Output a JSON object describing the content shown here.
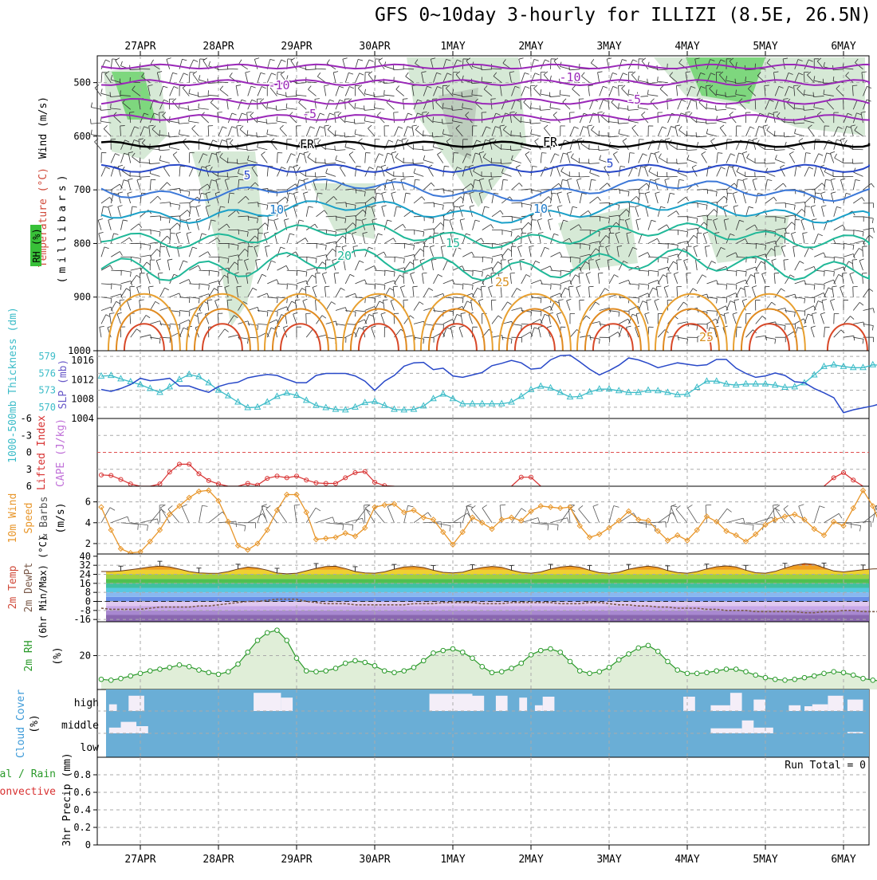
{
  "title": "GFS 0~10day 3-hourly for ILLIZI (8.5E, 26.5N)",
  "dates": [
    "27APR",
    "28APR",
    "29APR",
    "30APR",
    "1MAY",
    "2MAY",
    "3MAY",
    "4MAY",
    "5MAY",
    "6MAY"
  ],
  "panels": {
    "upper": {
      "labels": {
        "wind": "Wind (m/s)",
        "temperature": "Temperature (°C)",
        "millibars": "(millibars)",
        "rh": "RH (%)"
      },
      "yticks": [
        500,
        600,
        700,
        800,
        900,
        1000
      ],
      "contour_labels": [
        "-10",
        "-10",
        "-5",
        "-5",
        "FR",
        "FR",
        "5",
        "5",
        "10",
        "10",
        "15",
        "20",
        "25",
        "25"
      ]
    },
    "thickness": {
      "label_thickness": "1000-500mb Thickness (dm)",
      "label_slp": "SLP (mb)",
      "thickness_ticks": [
        "579",
        "576",
        "573",
        "570"
      ],
      "slp_ticks": [
        "1016",
        "1012",
        "1008",
        "1004"
      ]
    },
    "lifted": {
      "label_li": "Lifted Index",
      "label_cape": "CAPE (J/kg)",
      "yticks": [
        "-6",
        "-3",
        "0",
        "3",
        "6"
      ]
    },
    "wind10": {
      "label_main": "10m Wind",
      "label_speed": "Speed",
      "label_barbs": "& Barbs",
      "label_units": "(m/s)",
      "yticks": [
        "6",
        "4",
        "2"
      ]
    },
    "temp": {
      "label_temp": "2m Temp",
      "label_dew": "2m DewPt",
      "label_minmax": "(6hr Min/Max) (°C)",
      "yticks": [
        "40",
        "32",
        "24",
        "16",
        "8",
        "0",
        "-8",
        "-16"
      ]
    },
    "rh2m": {
      "label": "2m RH",
      "label_units": "(%)",
      "yticks": [
        "20"
      ]
    },
    "cloud": {
      "label": "Cloud Cover",
      "label_units": "(%)",
      "levels": [
        "high",
        "middle",
        "low"
      ]
    },
    "precip": {
      "label_total": "Total / Rain",
      "label_conv": "Convective",
      "label_main": "3hr Precip (mm)",
      "run_total": "Run Total = 0",
      "yticks": [
        "0.8",
        "0.6",
        "0.4",
        "0.2",
        "0"
      ]
    }
  },
  "colors": {
    "thickness": "#3cbcc8",
    "slp": "#2848c8",
    "lifted_index": "#d83030",
    "wind_speed": "#e8962a",
    "rh2m": "#2a9a2a",
    "dewpoint": "#7a5a4a"
  },
  "chart_data": {
    "type": "line",
    "x": [
      "04-26 12Z",
      "04-26 15Z",
      "04-26 18Z",
      "04-26 21Z",
      "04-27 00Z",
      "04-27 03Z",
      "04-27 06Z",
      "04-27 09Z",
      "04-27 12Z",
      "04-27 15Z",
      "04-27 18Z",
      "04-27 21Z",
      "04-28 00Z",
      "04-28 03Z",
      "04-28 06Z",
      "04-28 09Z",
      "04-28 12Z",
      "04-28 15Z",
      "04-28 18Z",
      "04-28 21Z",
      "04-29 00Z",
      "04-29 03Z",
      "04-29 06Z",
      "04-29 09Z",
      "04-29 12Z",
      "04-29 15Z",
      "04-29 18Z",
      "04-29 21Z",
      "04-30 00Z",
      "04-30 03Z",
      "04-30 06Z",
      "04-30 09Z",
      "04-30 12Z",
      "04-30 15Z",
      "04-30 18Z",
      "04-30 21Z",
      "05-01 00Z",
      "05-01 03Z",
      "05-01 06Z",
      "05-01 09Z",
      "05-01 12Z",
      "05-01 15Z",
      "05-01 18Z",
      "05-01 21Z",
      "05-02 00Z",
      "05-02 03Z",
      "05-02 06Z",
      "05-02 09Z",
      "05-02 12Z",
      "05-02 15Z",
      "05-02 18Z",
      "05-02 21Z",
      "05-03 00Z",
      "05-03 03Z",
      "05-03 06Z",
      "05-03 09Z",
      "05-03 12Z",
      "05-03 15Z",
      "05-03 18Z",
      "05-03 21Z",
      "05-04 00Z",
      "05-04 03Z",
      "05-04 06Z",
      "05-04 09Z",
      "05-04 12Z",
      "05-04 15Z",
      "05-04 18Z",
      "05-04 21Z",
      "05-05 00Z",
      "05-05 03Z",
      "05-05 06Z",
      "05-05 09Z",
      "05-05 12Z",
      "05-05 15Z",
      "05-05 18Z",
      "05-05 21Z",
      "05-06 00Z",
      "05-06 03Z",
      "05-06 06Z",
      "05-06 09Z",
      "05-06 12Z"
    ],
    "series": [
      {
        "name": "1000-500mb Thickness (dm)",
        "values": [
          575.5,
          575.6,
          575.0,
          574.5,
          574.0,
          573.3,
          572.6,
          573.6,
          574.9,
          575.8,
          575.4,
          574.3,
          573.0,
          572.0,
          570.9,
          569.9,
          570.0,
          570.9,
          571.9,
          572.5,
          572.1,
          571.2,
          570.3,
          569.9,
          569.6,
          569.5,
          570.0,
          570.8,
          571.0,
          570.3,
          569.6,
          569.5,
          569.6,
          570.2,
          571.5,
          572.3,
          571.5,
          570.6,
          570.6,
          570.6,
          570.6,
          570.6,
          570.9,
          571.9,
          573.1,
          573.7,
          573.4,
          572.6,
          571.8,
          571.9,
          572.7,
          573.2,
          573.2,
          572.9,
          572.6,
          572.6,
          573.0,
          572.9,
          572.6,
          572.2,
          572.3,
          573.5,
          574.6,
          574.6,
          574.1,
          573.9,
          574.1,
          574.1,
          574.1,
          573.9,
          573.5,
          573.6,
          574.3,
          575.7,
          577.2,
          577.5,
          577.2,
          577.0,
          577.0,
          577.5,
          577.4
        ]
      },
      {
        "name": "SLP (mb)",
        "values": [
          1010.0,
          1009.6,
          1010.2,
          1011.0,
          1012.3,
          1011.8,
          1012.0,
          1012.3,
          1010.7,
          1010.7,
          1010.0,
          1009.4,
          1010.6,
          1011.2,
          1011.5,
          1012.4,
          1012.8,
          1013.1,
          1012.9,
          1012.1,
          1011.4,
          1011.4,
          1012.9,
          1013.3,
          1013.3,
          1013.3,
          1012.8,
          1011.7,
          1009.8,
          1011.7,
          1012.9,
          1014.8,
          1015.5,
          1015.6,
          1014.1,
          1014.4,
          1012.8,
          1012.5,
          1013.0,
          1013.5,
          1014.9,
          1015.4,
          1016.0,
          1015.5,
          1014.2,
          1014.4,
          1016.1,
          1017.0,
          1017.1,
          1015.7,
          1014.2,
          1013.0,
          1013.9,
          1015.0,
          1016.5,
          1016.1,
          1015.4,
          1014.5,
          1015.0,
          1015.5,
          1015.2,
          1014.9,
          1015.1,
          1016.2,
          1016.2,
          1014.4,
          1013.3,
          1012.5,
          1012.8,
          1013.4,
          1012.9,
          1011.6,
          1011.4,
          1010.2,
          1009.3,
          1008.3,
          1005.2,
          1005.8,
          1006.2,
          1006.6,
          1007.2
        ]
      },
      {
        "name": "Lifted Index",
        "values": [
          4,
          4.1,
          4.8,
          5.6,
          6,
          6,
          5.6,
          3.5,
          2.1,
          2.1,
          3.8,
          5,
          5.6,
          6,
          6,
          5.5,
          5.8,
          4.6,
          4.2,
          4.5,
          4.2,
          4.9,
          5.4,
          5.5,
          5.5,
          4.5,
          3.6,
          3.4,
          5.3,
          5.9,
          6,
          6,
          6,
          6,
          6,
          6,
          6,
          6,
          6,
          6,
          6,
          6,
          6,
          4.4,
          4.4,
          6,
          6,
          6,
          6,
          6,
          6,
          6,
          6,
          6,
          6,
          6,
          6,
          6,
          6,
          6,
          6,
          6,
          6,
          6,
          6,
          6,
          6,
          6,
          6,
          6,
          6,
          6,
          6,
          6,
          6,
          4.5,
          3.6,
          4.9,
          6,
          6,
          6
        ]
      },
      {
        "name": "10m Wind Speed (m/s)",
        "values": [
          5.5,
          3.3,
          1.5,
          1.1,
          1.2,
          2.2,
          3.3,
          4.8,
          5.6,
          6.4,
          7.0,
          7.1,
          6.1,
          4.1,
          1.8,
          1.4,
          2.0,
          3.3,
          5.2,
          6.7,
          6.7,
          5.0,
          2.4,
          2.5,
          2.6,
          3.0,
          2.7,
          3.5,
          5.5,
          5.7,
          5.8,
          5.0,
          5.2,
          4.5,
          4.3,
          3.1,
          1.9,
          3.1,
          4.5,
          4.0,
          3.4,
          4.3,
          4.5,
          4.2,
          5.1,
          5.6,
          5.5,
          5.4,
          5.5,
          3.7,
          2.6,
          2.9,
          3.5,
          4.2,
          5.1,
          4.3,
          4.2,
          3.2,
          2.3,
          2.8,
          2.3,
          3.3,
          4.6,
          4.1,
          3.2,
          2.8,
          2.2,
          2.9,
          3.8,
          4.3,
          4.6,
          4.8,
          4.3,
          3.4,
          2.8,
          4.1,
          3.7,
          5.4,
          7.1,
          5.6,
          3.2
        ]
      },
      {
        "name": "2m Temp (°C)",
        "values": [
          26.5,
          26.5,
          27.0,
          28.0,
          29.2,
          30.5,
          31.3,
          30.5,
          28.6,
          26.5,
          25.3,
          24.9,
          25.0,
          26.4,
          28.7,
          30.4,
          29.6,
          27.7,
          25.1,
          24.4,
          25.0,
          27.1,
          29.3,
          30.9,
          31.1,
          29.1,
          26.5,
          25.2,
          25.0,
          26.2,
          28.5,
          30.5,
          31.0,
          30.0,
          27.6,
          25.8,
          25.2,
          26.0,
          28.3,
          30.0,
          31.0,
          30.2,
          27.6,
          25.7,
          25.0,
          26.1,
          28.6,
          30.4,
          31.2,
          30.3,
          27.6,
          25.5,
          24.9,
          26.0,
          28.5,
          30.2,
          31.2,
          30.1,
          27.3,
          25.6,
          25.0,
          26.4,
          28.8,
          30.7,
          31.4,
          30.5,
          27.7,
          25.4,
          25.0,
          26.6,
          29.5,
          32.0,
          33.5,
          32.8,
          29.7,
          27.0,
          26.1,
          27.1,
          28.0,
          28.8,
          29.0
        ]
      },
      {
        "name": "2m DewPt (°C)",
        "values": [
          -6,
          -7,
          -7,
          -7,
          -7,
          -6,
          -5,
          -5,
          -5,
          -5,
          -4,
          -4,
          -3,
          -2,
          -1,
          0,
          0,
          1,
          2,
          2,
          2,
          0,
          -1,
          -2,
          -2,
          -2,
          -3,
          -3,
          -3,
          -3,
          -3,
          -3,
          -2,
          -2,
          -2,
          -1,
          -1,
          -1,
          -1,
          -2,
          -2,
          -2,
          -1,
          -1,
          -1,
          -1,
          -1,
          -2,
          -2,
          -2,
          -1,
          -1,
          -2,
          -3,
          -3,
          -4,
          -4,
          -5,
          -5,
          -6,
          -6,
          -6,
          -7,
          -7,
          -8,
          -8,
          -8,
          -9,
          -9,
          -9,
          -9,
          -9,
          -10,
          -10,
          -9,
          -9,
          -8,
          -8,
          -9,
          -9,
          -9
        ]
      },
      {
        "name": "2m RH (%)",
        "values": [
          6,
          5.5,
          6.5,
          8,
          9.5,
          11,
          12,
          13,
          14.5,
          13.5,
          11.5,
          10,
          9,
          10.5,
          15,
          22,
          29,
          33.5,
          35,
          29,
          18.5,
          11,
          10.5,
          11,
          12.5,
          15.5,
          17,
          16,
          14,
          11,
          10,
          11,
          13,
          17,
          21.5,
          23,
          24,
          22,
          18.5,
          13.5,
          10,
          10.5,
          12.5,
          15.5,
          20.5,
          23,
          24,
          22,
          16.5,
          11,
          9.5,
          10.5,
          13,
          17.5,
          21,
          24.5,
          26,
          22.5,
          16.5,
          11.5,
          9.5,
          9.5,
          10,
          11,
          12,
          12,
          10.5,
          8.5,
          7,
          6,
          5.5,
          6,
          7,
          8,
          9.5,
          10.5,
          10,
          8.5,
          6.5,
          5.5,
          5
        ]
      }
    ],
    "cloud_high_blocks_day": [
      [
        0.1,
        0.2,
        0.35
      ],
      [
        0.35,
        0.55,
        0.8
      ],
      [
        1.95,
        2.3,
        0.95
      ],
      [
        2.3,
        2.45,
        0.7
      ],
      [
        4.2,
        4.75,
        0.9
      ],
      [
        4.75,
        4.9,
        0.8
      ],
      [
        5.05,
        5.2,
        0.8
      ],
      [
        5.35,
        5.45,
        0.7
      ],
      [
        5.55,
        5.65,
        0.3
      ],
      [
        5.65,
        5.8,
        0.75
      ],
      [
        7.45,
        7.6,
        0.75
      ],
      [
        7.8,
        8.05,
        0.3
      ],
      [
        8.05,
        8.2,
        0.95
      ],
      [
        8.35,
        8.5,
        0.6
      ],
      [
        8.8,
        8.95,
        0.3
      ],
      [
        9.0,
        9.1,
        0.25
      ],
      [
        9.1,
        9.3,
        0.35
      ],
      [
        9.3,
        9.5,
        0.8
      ],
      [
        9.55,
        9.75,
        0.6
      ]
    ],
    "cloud_mid_blocks_day": [
      [
        0.1,
        0.25,
        0.4
      ],
      [
        0.25,
        0.45,
        0.8
      ],
      [
        0.45,
        0.6,
        0.5
      ],
      [
        7.8,
        8.2,
        0.35
      ],
      [
        8.2,
        8.35,
        0.9
      ],
      [
        8.35,
        8.6,
        0.4
      ],
      [
        9.55,
        9.75,
        0.1
      ]
    ],
    "yticks_pressure_mb": [
      500,
      600,
      700,
      800,
      900,
      1000
    ],
    "ylim_thickness_dm": [
      568,
      580
    ],
    "ylim_slp_mb": [
      1004,
      1018
    ],
    "ylim_lifted_index": [
      6,
      -6
    ],
    "ylim_wind_ms": [
      1,
      7.5
    ],
    "ylim_temp_c": [
      -18,
      42
    ],
    "ylim_rh_pct": [
      0,
      40
    ],
    "ylim_precip_mm": [
      0,
      1
    ],
    "grid": true
  }
}
